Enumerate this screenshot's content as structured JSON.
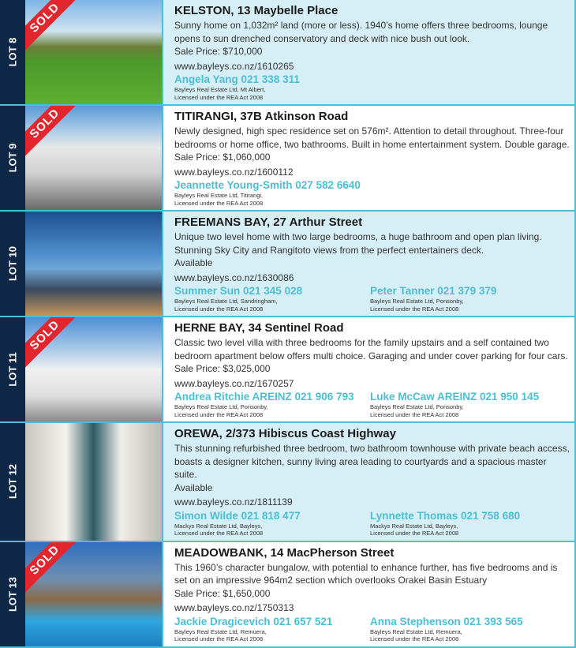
{
  "colors": {
    "accent": "#4bbfd4",
    "strip": "#0f2747",
    "sold": "#e3262d",
    "panel": "#d6eef5"
  },
  "lots": [
    {
      "lot": "LOT 8",
      "sold": "SOLD",
      "title": "KELSTON, 13 Maybelle Place",
      "desc": "Sunny home on 1,032m² land (more or less). 1940’s home offers three bedrooms, lounge opens to sun drenched conservatory and deck with nice bush out look.",
      "price": "Sale Price: $710,000",
      "url": "www.bayleys.co.nz/1610265",
      "agents": [
        {
          "name": "Angela Yang 021 338 311",
          "co": "Bayleys Real Estate Ltd, Mt Albert,",
          "lic": "Licensed under the REA Act 2008"
        }
      ]
    },
    {
      "lot": "LOT 9",
      "sold": "SOLD",
      "title": "TITIRANGI, 37B Atkinson Road",
      "desc": "Newly designed, high spec residence set on 576m². Attention to detail throughout. Three-four bedrooms or home office, two bathrooms. Built in home entertainment system. Double garage.",
      "price": "Sale Price: $1,060,000",
      "url": "www.bayleys.co.nz/1600112",
      "agents": [
        {
          "name": "Jeannette Young-Smith 027 582 6640",
          "co": "Bayleys Real Estate Ltd, Titirangi,",
          "lic": "Licensed under the REA Act 2008"
        }
      ]
    },
    {
      "lot": "LOT 10",
      "sold": "",
      "title": "FREEMANS BAY, 27 Arthur Street",
      "desc": "Unique two level home with two large bedrooms, a huge bathroom and open plan living. Stunning Sky City and Rangitoto views from the perfect entertainers deck.",
      "price": "Available",
      "url": "www.bayleys.co.nz/1630086",
      "agents": [
        {
          "name": "Summer Sun 021 345 028",
          "co": "Bayleys Real Estate Ltd, Sandringham,",
          "lic": "Licensed under the REA Act 2008"
        },
        {
          "name": "Peter Tanner 021 379 379",
          "co": "Bayleys Real Estate Ltd, Ponsonby,",
          "lic": "Licensed under the REA Act 2008"
        }
      ]
    },
    {
      "lot": "LOT 11",
      "sold": "SOLD",
      "title": "HERNE BAY, 34 Sentinel Road",
      "desc": "Classic two level villa with three bedrooms for the family upstairs and a self contained two bedroom apartment below offers multi choice. Garaging and under cover parking for four cars.",
      "price": "Sale Price: $3,025,000",
      "url": "www.bayleys.co.nz/1670257",
      "agents": [
        {
          "name": "Andrea Ritchie AREINZ 021 906 793",
          "co": "Bayleys Real Estate Ltd, Ponsonby,",
          "lic": "Licensed under the REA Act 2008"
        },
        {
          "name": "Luke McCaw AREINZ 021 950 145",
          "co": "Bayleys Real Estate Ltd, Ponsonby,",
          "lic": "Licensed under the REA Act 2008"
        }
      ]
    },
    {
      "lot": "LOT 12",
      "sold": "",
      "title": "OREWA, 2/373 Hibiscus Coast Highway",
      "desc": "This stunning refurbished three bedroom, two bathroom townhouse with private beach access, boasts a designer kitchen, sunny living area leading to courtyards and a spacious master suite.",
      "price": "Available",
      "url": "www.bayleys.co.nz/1811139",
      "agents": [
        {
          "name": "Simon Wilde 021 818 477",
          "co": "Mackys Real Estate Ltd, Bayleys,",
          "lic": "Licensed under the REA Act 2008"
        },
        {
          "name": "Lynnette Thomas 021 758 680",
          "co": "Mackys Real Estate Ltd, Bayleys,",
          "lic": "Licensed under the REA Act 2008"
        }
      ]
    },
    {
      "lot": "LOT 13",
      "sold": "SOLD",
      "title": "MEADOWBANK, 14 MacPherson Street",
      "desc": "This 1960’s character bungalow, with potential to enhance further, has five bedrooms and is set on an impressive 964m2 section which overlooks Orakei Basin Estuary",
      "price": "Sale Price: $1,650,000",
      "url": "www.bayleys.co.nz/1750313",
      "agents": [
        {
          "name": "Jackie Dragicevich 021 657 521",
          "co": "Bayleys Real Estate Ltd, Remuera,",
          "lic": "Licensed under the REA Act 2008"
        },
        {
          "name": "Anna Stephenson 021 393 565",
          "co": "Bayleys Real Estate Ltd, Remuera,",
          "lic": "Licensed under the REA Act 2008"
        }
      ]
    }
  ]
}
